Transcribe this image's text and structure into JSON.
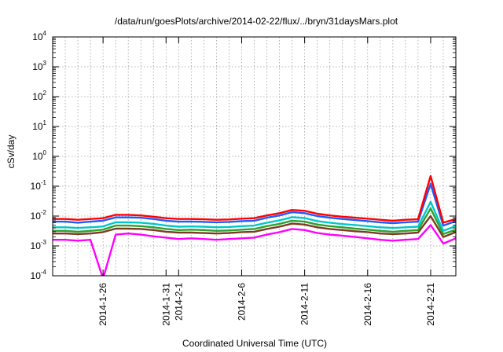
{
  "chart_data": {
    "type": "line",
    "title": "/data/run/goesPlots/archive/2014-02-22/flux/../bryn/31daysMars.plot",
    "xlabel": "Coordinated Universal Time (UTC)",
    "ylabel": "cSv/day",
    "y_scale": "log",
    "ylim": [
      0.0001,
      10000
    ],
    "y_ticks": [
      {
        "base": "10",
        "exp": "4"
      },
      {
        "base": "10",
        "exp": "3"
      },
      {
        "base": "10",
        "exp": "2"
      },
      {
        "base": "10",
        "exp": "1"
      },
      {
        "base": "10",
        "exp": "0"
      },
      {
        "base": "10",
        "exp": "-1"
      },
      {
        "base": "10",
        "exp": "-2"
      },
      {
        "base": "10",
        "exp": "-3"
      },
      {
        "base": "10",
        "exp": "-4"
      }
    ],
    "xlim": [
      "2014-01-22",
      "2014-02-23"
    ],
    "x_ticks": [
      "2014-1-26",
      "2014-1-31",
      "2014-2-1",
      "2014-2-6",
      "2014-2-11",
      "2014-2-16",
      "2014-2-21"
    ],
    "grid": true,
    "legend": "none",
    "x": [
      "2014-01-22",
      "2014-01-23",
      "2014-01-24",
      "2014-01-25",
      "2014-01-26",
      "2014-01-27",
      "2014-01-28",
      "2014-01-29",
      "2014-01-30",
      "2014-01-31",
      "2014-02-01",
      "2014-02-02",
      "2014-02-03",
      "2014-02-04",
      "2014-02-05",
      "2014-02-06",
      "2014-02-07",
      "2014-02-08",
      "2014-02-09",
      "2014-02-10",
      "2014-02-11",
      "2014-02-12",
      "2014-02-13",
      "2014-02-14",
      "2014-02-15",
      "2014-02-16",
      "2014-02-17",
      "2014-02-18",
      "2014-02-19",
      "2014-02-20",
      "2014-02-21",
      "2014-02-22",
      "2014-02-23"
    ],
    "series": [
      {
        "color": "#ff0000",
        "values": [
          0.008,
          0.008,
          0.0075,
          0.008,
          0.0085,
          0.011,
          0.011,
          0.0105,
          0.0095,
          0.0085,
          0.008,
          0.008,
          0.0078,
          0.0075,
          0.0077,
          0.0082,
          0.0085,
          0.0105,
          0.0125,
          0.016,
          0.015,
          0.012,
          0.0105,
          0.0095,
          0.0088,
          0.0082,
          0.0075,
          0.007,
          0.0075,
          0.0078,
          0.22,
          0.006,
          0.008
        ]
      },
      {
        "color": "#1e5aff",
        "values": [
          0.0065,
          0.0065,
          0.006,
          0.0065,
          0.007,
          0.009,
          0.009,
          0.0088,
          0.008,
          0.007,
          0.0065,
          0.0066,
          0.0064,
          0.0062,
          0.0064,
          0.0068,
          0.007,
          0.0088,
          0.0105,
          0.0135,
          0.0125,
          0.01,
          0.0088,
          0.008,
          0.0074,
          0.0068,
          0.0062,
          0.0058,
          0.0062,
          0.0065,
          0.12,
          0.0048,
          0.0068
        ]
      },
      {
        "color": "#00c8c8",
        "values": [
          0.0042,
          0.0042,
          0.004,
          0.0042,
          0.0045,
          0.0062,
          0.0062,
          0.006,
          0.0055,
          0.0048,
          0.0044,
          0.0045,
          0.0044,
          0.0042,
          0.0043,
          0.0046,
          0.0048,
          0.006,
          0.0072,
          0.0092,
          0.0086,
          0.0068,
          0.006,
          0.0054,
          0.005,
          0.0046,
          0.0042,
          0.004,
          0.0042,
          0.0044,
          0.03,
          0.0032,
          0.0046
        ]
      },
      {
        "color": "#2ea02e",
        "values": [
          0.0032,
          0.0032,
          0.003,
          0.0032,
          0.0035,
          0.0048,
          0.0048,
          0.0046,
          0.0042,
          0.0037,
          0.0034,
          0.0035,
          0.0034,
          0.0032,
          0.0033,
          0.0035,
          0.0037,
          0.0046,
          0.0055,
          0.007,
          0.0065,
          0.0052,
          0.0046,
          0.0042,
          0.0038,
          0.0035,
          0.0032,
          0.003,
          0.0032,
          0.0034,
          0.018,
          0.0025,
          0.0035
        ]
      },
      {
        "color": "#7a3c1e",
        "values": [
          0.0026,
          0.0026,
          0.0025,
          0.0026,
          0.0029,
          0.0038,
          0.0038,
          0.0037,
          0.0034,
          0.003,
          0.0028,
          0.0028,
          0.0027,
          0.0026,
          0.0027,
          0.0029,
          0.003,
          0.0037,
          0.0044,
          0.0056,
          0.0052,
          0.0042,
          0.0037,
          0.0034,
          0.0031,
          0.0029,
          0.0026,
          0.0025,
          0.0026,
          0.0028,
          0.01,
          0.002,
          0.0029
        ]
      },
      {
        "color": "#ff00ff",
        "values": [
          0.0016,
          0.0016,
          0.0015,
          0.0016,
          8e-05,
          0.0024,
          0.0026,
          0.0024,
          0.0021,
          0.0019,
          0.0017,
          0.0018,
          0.0017,
          0.0016,
          0.0017,
          0.0018,
          0.0019,
          0.0024,
          0.0029,
          0.0037,
          0.0034,
          0.0027,
          0.0024,
          0.0022,
          0.002,
          0.0018,
          0.0016,
          0.0015,
          0.0016,
          0.0017,
          0.005,
          0.0012,
          0.0018
        ]
      }
    ]
  }
}
